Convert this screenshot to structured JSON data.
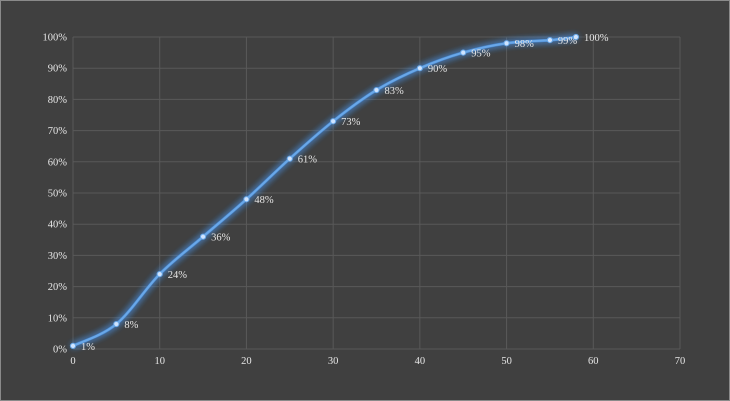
{
  "chart_data": {
    "type": "line",
    "title": "",
    "xlabel": "",
    "ylabel": "",
    "xlim": [
      0,
      70
    ],
    "ylim": [
      0,
      100
    ],
    "x_ticks": [
      0,
      10,
      20,
      30,
      40,
      50,
      60,
      70
    ],
    "y_ticks": [
      "0%",
      "10%",
      "20%",
      "30%",
      "40%",
      "50%",
      "60%",
      "70%",
      "80%",
      "90%",
      "100%"
    ],
    "grid": true,
    "smooth": true,
    "series": [
      {
        "x": [
          0,
          5,
          10,
          15,
          20,
          25,
          30,
          35,
          40,
          45,
          50,
          55,
          58
        ],
        "values": [
          1,
          8,
          24,
          36,
          48,
          61,
          73,
          83,
          90,
          95,
          98,
          99,
          100
        ],
        "labels": [
          "1%",
          "8%",
          "24%",
          "36%",
          "48%",
          "61%",
          "73%",
          "83%",
          "90%",
          "95%",
          "98%",
          "99%",
          "100%"
        ]
      }
    ],
    "colors": {
      "background": "#404040",
      "grid": "#595959",
      "line": "#6aa8e8",
      "glow": "#4a8fe0",
      "text": "#e6e6e6"
    }
  }
}
